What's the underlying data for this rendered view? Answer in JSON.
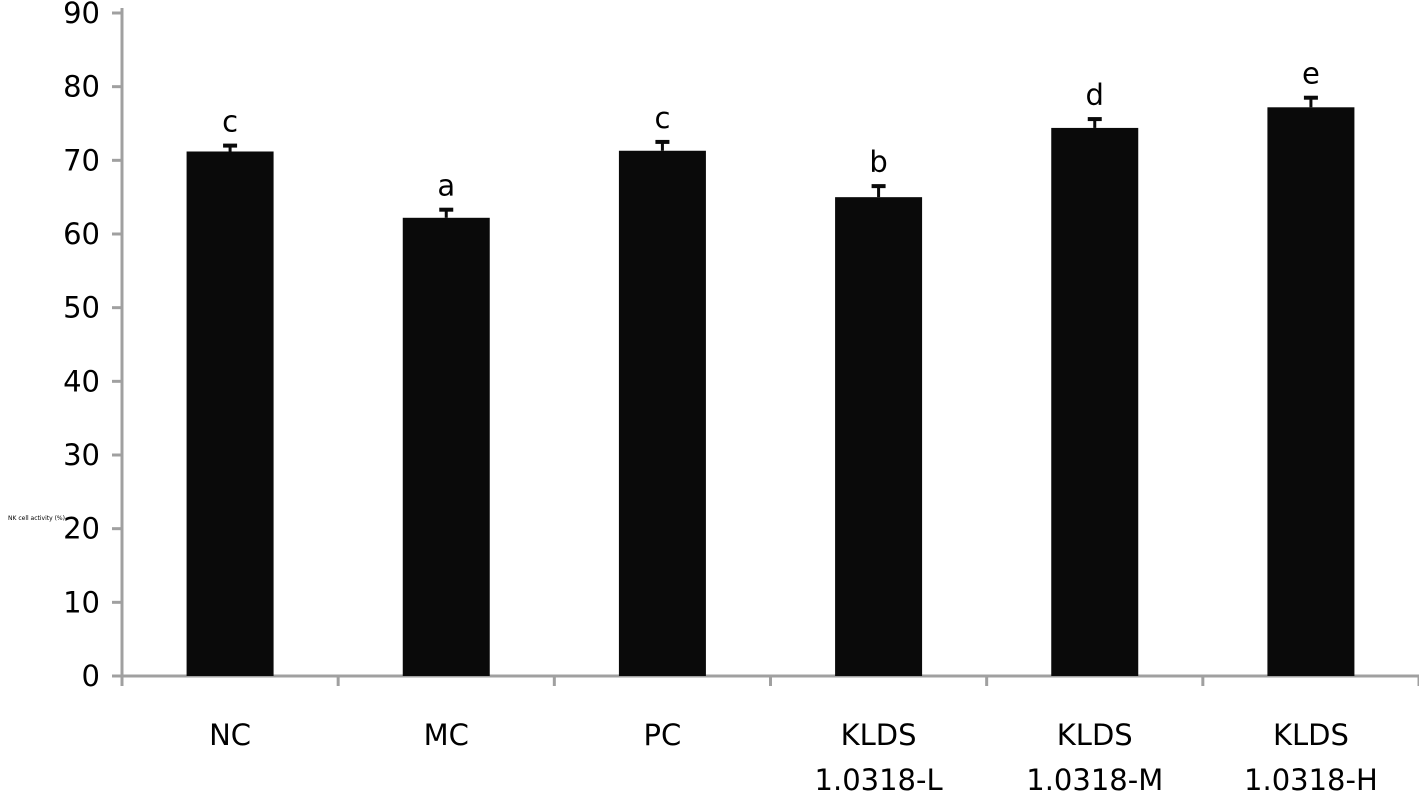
{
  "chart_data": {
    "type": "bar",
    "title": "",
    "xlabel": "",
    "ylabel": "NK cell activity (%)",
    "ylim": [
      0,
      90
    ],
    "yticks": [
      0,
      10,
      20,
      30,
      40,
      50,
      60,
      70,
      80,
      90
    ],
    "grid": false,
    "categories": [
      [
        "NC"
      ],
      [
        "MC"
      ],
      [
        "PC"
      ],
      [
        "KLDS",
        "1.0318-L"
      ],
      [
        "KLDS",
        "1.0318-M"
      ],
      [
        "KLDS",
        "1.0318-H"
      ]
    ],
    "values": [
      71.2,
      62.2,
      71.3,
      65.0,
      74.4,
      77.2
    ],
    "errors": [
      0.8,
      1.1,
      1.2,
      1.5,
      1.2,
      1.3
    ],
    "significance_letters": [
      "c",
      "a",
      "c",
      "b",
      "d",
      "e"
    ],
    "colors": {
      "bar": "#0a0a0a",
      "axis": "#a0a0a0"
    }
  }
}
